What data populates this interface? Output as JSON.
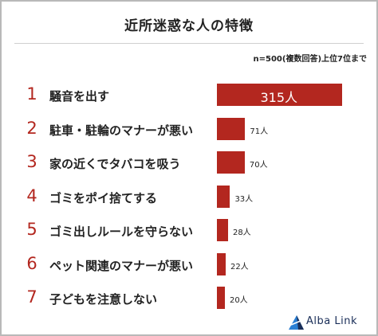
{
  "header": {
    "title": "近所迷惑な人の特徴",
    "subtitle": "n=500(複数回答)上位7位まで"
  },
  "logo": {
    "text": "Alba Link",
    "icon": "alba-link-triangle-icon",
    "color": "#1a2e58"
  },
  "colors": {
    "bar": "#b3271f",
    "rank": "#b3271f"
  },
  "chart_data": {
    "type": "bar",
    "orientation": "horizontal",
    "title": "近所迷惑な人の特徴",
    "subtitle": "n=500(複数回答)上位7位まで",
    "ranks": [
      "1",
      "2",
      "3",
      "4",
      "5",
      "6",
      "7"
    ],
    "categories": [
      "騒音を出す",
      "駐車・駐輪のマナーが悪い",
      "家の近くでタバコを吸う",
      "ゴミをポイ捨てする",
      "ゴミ出しルールを守らない",
      "ペット関連のマナーが悪い",
      "子どもを注意しない"
    ],
    "values": [
      315,
      71,
      70,
      33,
      28,
      22,
      20
    ],
    "data_labels": [
      "315人",
      "71人",
      "70人",
      "33人",
      "28人",
      "22人",
      "20人"
    ],
    "unit": "人",
    "xlim": [
      0,
      315
    ],
    "grid": false,
    "legend": "none"
  }
}
